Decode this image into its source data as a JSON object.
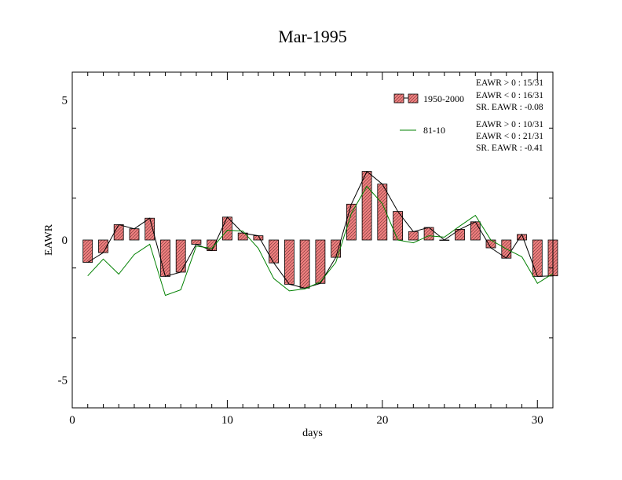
{
  "chart_data": {
    "type": "bar",
    "title": "Mar-1995",
    "xlabel": "days",
    "ylabel": "EAWR",
    "xlim": [
      0,
      31
    ],
    "ylim": [
      -6,
      6
    ],
    "xticks": [
      0,
      10,
      20,
      30
    ],
    "xtick_labels": [
      "0",
      "10",
      "20",
      "30"
    ],
    "yticks": [
      -5,
      0,
      5
    ],
    "ytick_labels": [
      "-5",
      "0",
      "5"
    ],
    "x": [
      1,
      2,
      3,
      4,
      5,
      6,
      7,
      8,
      9,
      10,
      11,
      12,
      13,
      14,
      15,
      16,
      17,
      18,
      19,
      20,
      21,
      22,
      23,
      24,
      25,
      26,
      27,
      28,
      29,
      30,
      31
    ],
    "series": [
      {
        "name": "1950-2000",
        "kind": "bar",
        "color": "#f08080",
        "values": [
          -0.8,
          -0.45,
          0.55,
          0.4,
          0.78,
          -1.3,
          -1.15,
          -0.15,
          -0.38,
          0.82,
          0.25,
          0.15,
          -0.82,
          -1.58,
          -1.72,
          -1.55,
          -0.62,
          1.28,
          2.45,
          2.0,
          1.02,
          0.3,
          0.45,
          0.0,
          0.38,
          0.65,
          -0.28,
          -0.65,
          0.2,
          -1.3,
          -1.28
        ]
      },
      {
        "name": "81-10",
        "kind": "line",
        "color": "#008000",
        "values": [
          -1.28,
          -0.68,
          -1.22,
          -0.52,
          -0.15,
          -1.98,
          -1.78,
          -0.22,
          -0.3,
          0.35,
          0.32,
          -0.3,
          -1.38,
          -1.82,
          -1.75,
          -1.5,
          -0.8,
          0.95,
          1.92,
          1.3,
          0.0,
          -0.1,
          0.15,
          0.1,
          0.5,
          0.88,
          0.0,
          -0.32,
          -0.6,
          -1.55,
          -1.2
        ]
      }
    ],
    "legend": [
      {
        "label": "1950-2000",
        "stats": [
          "EAWR > 0 : 15/31",
          "EAWR < 0 : 16/31",
          "SR. EAWR : -0.08"
        ]
      },
      {
        "label": "81-10",
        "stats": [
          "EAWR > 0 : 10/31",
          "EAWR < 0 : 21/31",
          "SR. EAWR : -0.41"
        ]
      }
    ],
    "legend_position": "top-right",
    "grid": false
  }
}
